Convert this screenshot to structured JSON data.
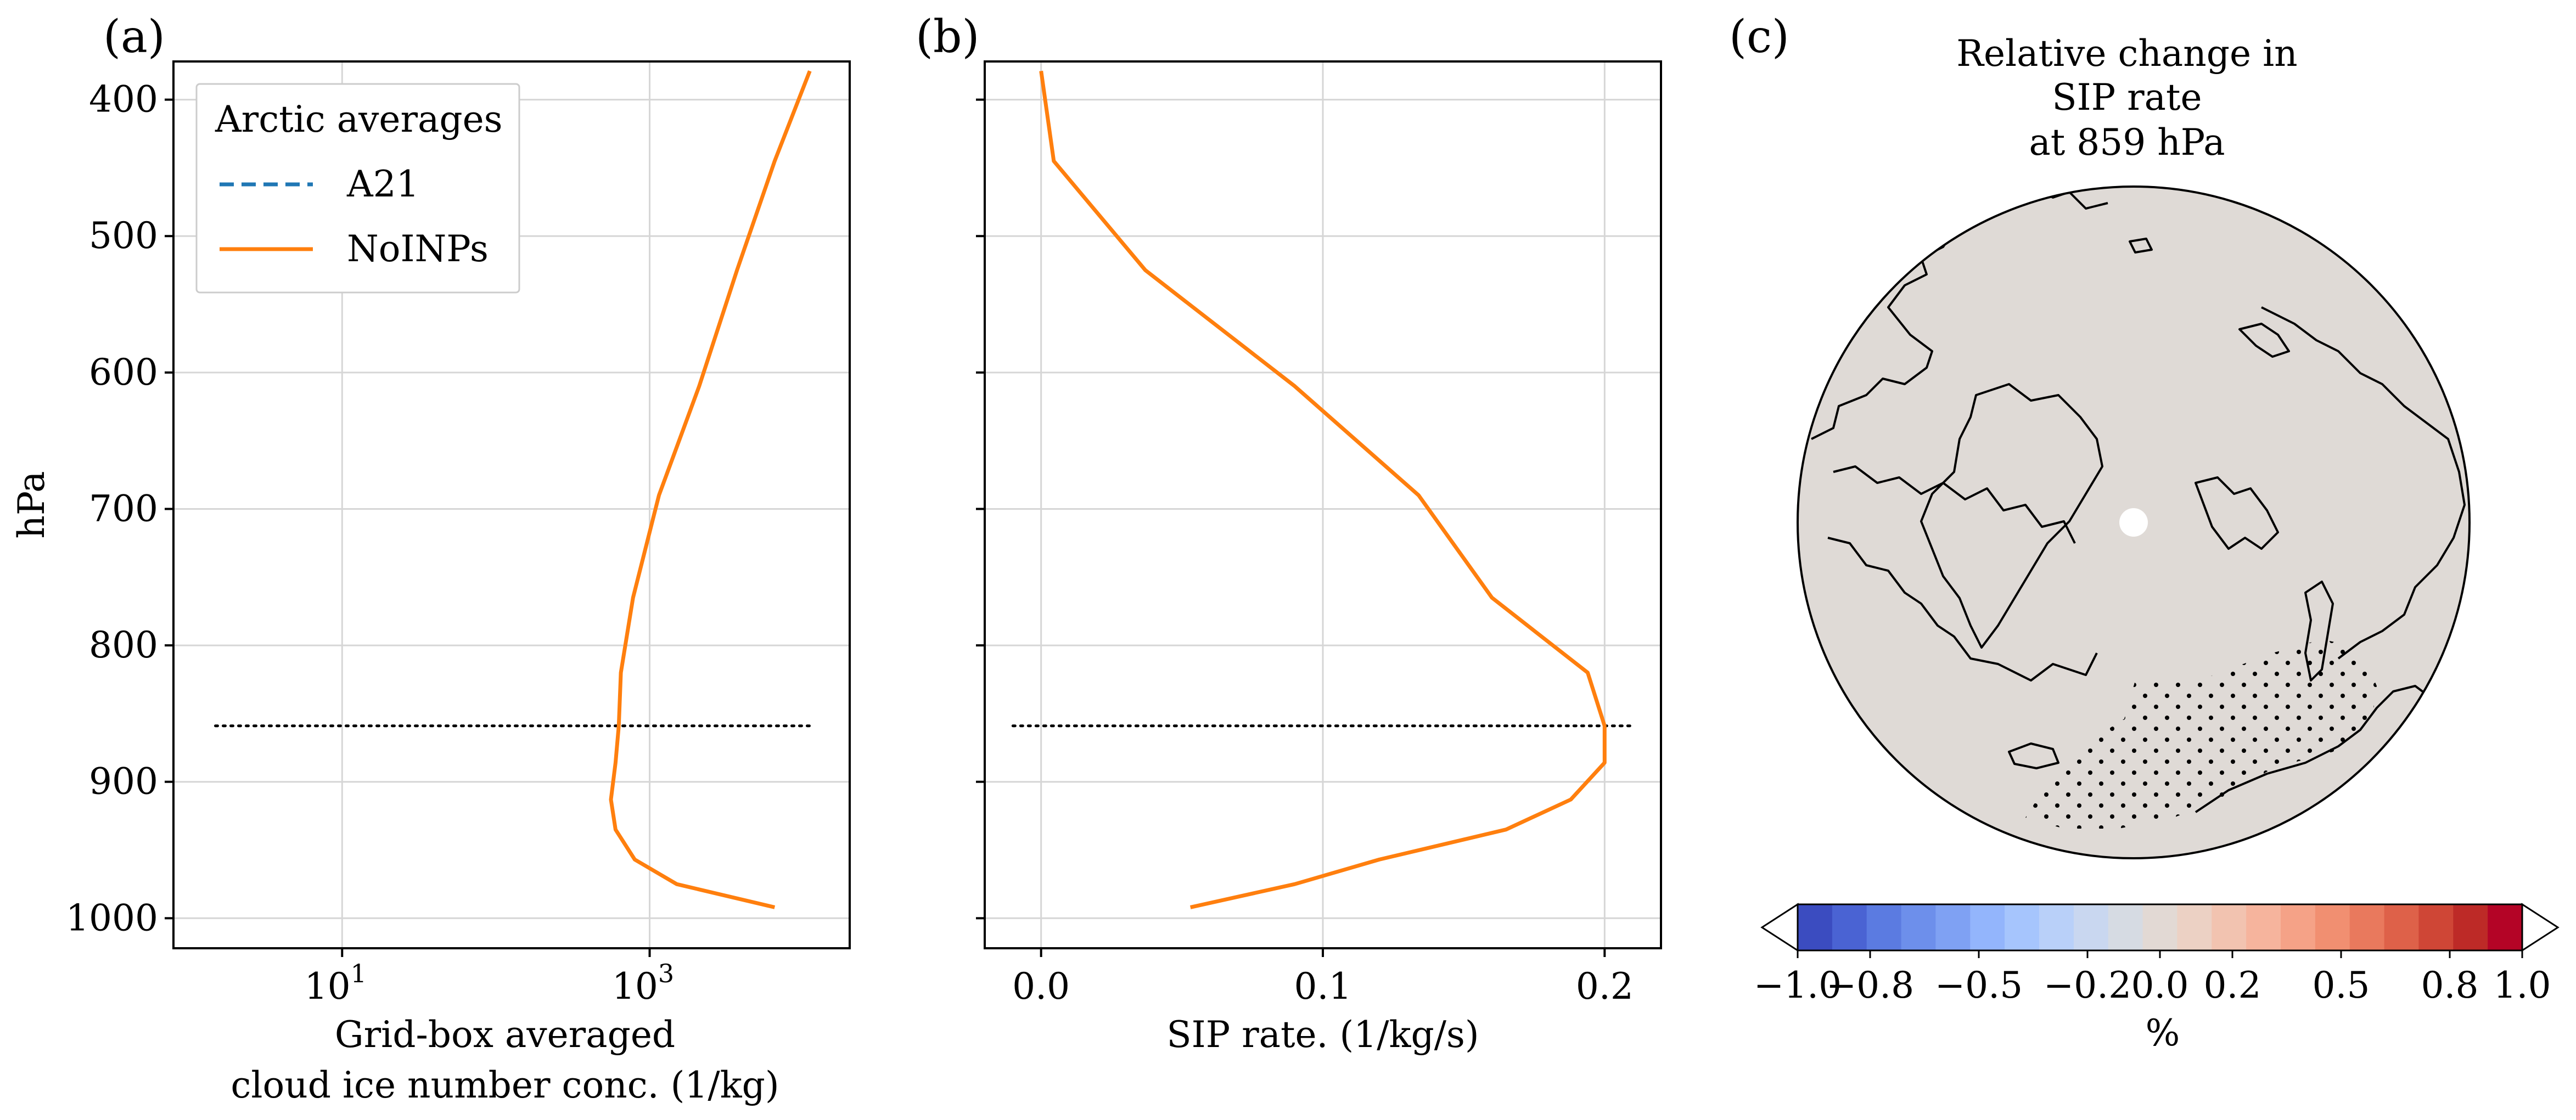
{
  "chart_data": [
    {
      "type": "line",
      "panel_label": "(a)",
      "xlabel_line1": "Grid-box averaged",
      "xlabel_line2": "cloud ice number conc. (1/kg)",
      "ylabel": "hPa",
      "xscale": "log",
      "xlim": [
        0.8,
        20000
      ],
      "ylim": [
        1022,
        372
      ],
      "y_inverted": true,
      "grid": true,
      "xtick_labels": [
        {
          "base": "10",
          "exp": "1",
          "value": 10
        },
        {
          "base": "10",
          "exp": "3",
          "value": 1000
        }
      ],
      "yticks": [
        400,
        500,
        600,
        700,
        800,
        900,
        1000
      ],
      "ytick_labels": [
        "400",
        "500",
        "600",
        "700",
        "800",
        "900",
        "1000"
      ],
      "legend": {
        "title": "Arctic averages",
        "placement": "upper left",
        "entries": [
          {
            "label": "A21",
            "color": "#1f77b4",
            "style": "dashed"
          },
          {
            "label": "NoINPs",
            "color": "#ff7f0e",
            "style": "solid"
          }
        ]
      },
      "series": [
        {
          "name": "NoINPs",
          "color": "#ff7f0e",
          "x": [
            11000,
            6500,
            3700,
            2100,
            1150,
            780,
            650,
            630,
            600,
            560,
            600,
            800,
            1500,
            6500
          ],
          "y": [
            379,
            445,
            525,
            610,
            690,
            765,
            820,
            859,
            886,
            913,
            935,
            957,
            975,
            992
          ]
        }
      ],
      "reference_line": {
        "y": 859,
        "x_range": [
          1.5,
          11500
        ],
        "style": "dotted",
        "color": "#000000"
      }
    },
    {
      "type": "line",
      "panel_label": "(b)",
      "xlabel": "SIP rate. (1/kg/s)",
      "xlim": [
        -0.02,
        0.22
      ],
      "ylim": [
        1022,
        372
      ],
      "y_inverted": true,
      "grid": true,
      "xticks": [
        0.0,
        0.1,
        0.2
      ],
      "xtick_labels": [
        "0.0",
        "0.1",
        "0.2"
      ],
      "yticks": [
        400,
        500,
        600,
        700,
        800,
        900,
        1000
      ],
      "series": [
        {
          "name": "NoINPs",
          "color": "#ff7f0e",
          "x": [
            0.0,
            0.0045,
            0.037,
            0.09,
            0.134,
            0.16,
            0.194,
            0.2,
            0.2,
            0.188,
            0.165,
            0.12,
            0.09,
            0.053
          ],
          "y": [
            379,
            445,
            525,
            610,
            690,
            765,
            820,
            859,
            886,
            913,
            935,
            957,
            975,
            992
          ]
        }
      ],
      "reference_line": {
        "y": 859,
        "x_range": [
          -0.01,
          0.21
        ],
        "style": "dotted",
        "color": "#000000"
      }
    },
    {
      "type": "map",
      "panel_label": "(c)",
      "title_lines": [
        "Relative change in",
        "SIP rate",
        "at 859 hPa"
      ],
      "projection": "north polar stereographic",
      "fill_color": "#dfdad6",
      "fill_value_percent": 0.0,
      "stippling_note_region": "lower-right sector",
      "colorbar": {
        "label": "%",
        "cmap": "coolwarm (diverging blue-white-red)",
        "ticks": [
          -1.0,
          -0.8,
          -0.5,
          -0.2,
          0.0,
          0.2,
          0.5,
          0.8,
          1.0
        ],
        "tick_labels": [
          "−1.0",
          "−0.8",
          "−0.5",
          "−0.2",
          "0.0",
          "0.2",
          "0.5",
          "0.8",
          "1.0"
        ],
        "extend": "both",
        "colors": [
          "#3b4cc0",
          "#4a63d3",
          "#5b7be1",
          "#6d8feb",
          "#7fa1f3",
          "#93b5fc",
          "#a6c5fd",
          "#b9d0f9",
          "#c9d7f0",
          "#d6dbe3",
          "#e2d9d4",
          "#ecd1c4",
          "#f2c3b0",
          "#f6b49d",
          "#f5a287",
          "#f18f71",
          "#e9795d",
          "#de6149",
          "#cf4636",
          "#bd2a27",
          "#b40426"
        ]
      }
    }
  ]
}
